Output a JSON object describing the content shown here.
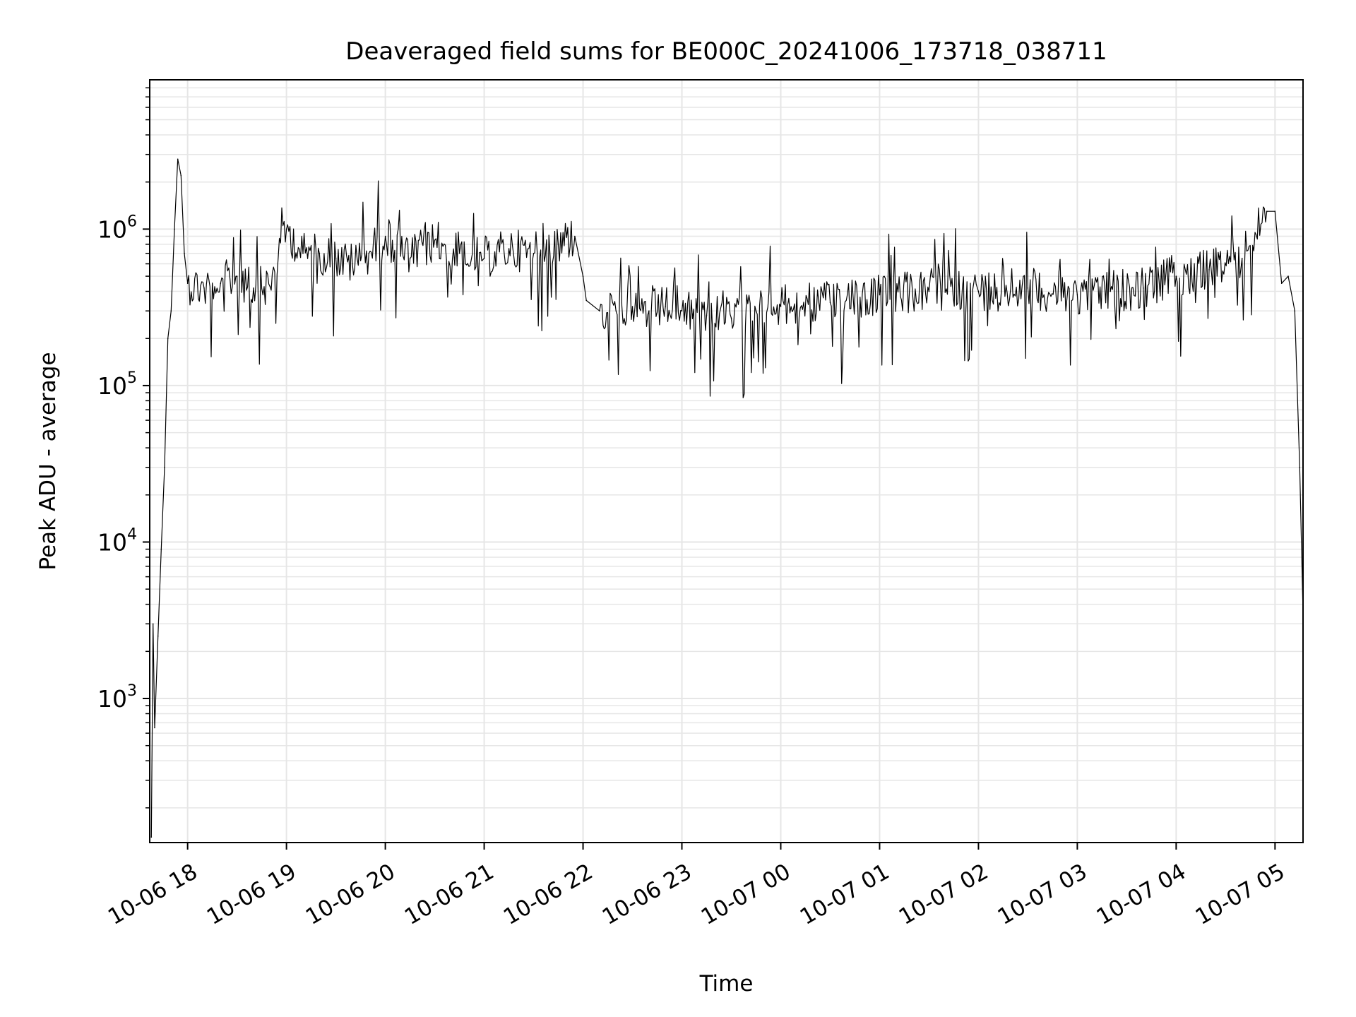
{
  "chart_data": {
    "type": "line",
    "title": "Deaveraged field sums for BE000C_20241006_173718_038711",
    "xlabel": "Time",
    "ylabel": "Peak ADU - average",
    "yscale": "log",
    "ylim": [
      120,
      9000000
    ],
    "xlim": [
      "2024-10-06 17:37",
      "2024-10-07 05:17"
    ],
    "grid": "both, major and minor",
    "line_color": "#000000",
    "grid_color": "#e6e6e6",
    "x_ticks": [
      {
        "t": "2024-10-06 18:00",
        "label": "10-06 18"
      },
      {
        "t": "2024-10-06 19:00",
        "label": "10-06 19"
      },
      {
        "t": "2024-10-06 20:00",
        "label": "10-06 20"
      },
      {
        "t": "2024-10-06 21:00",
        "label": "10-06 21"
      },
      {
        "t": "2024-10-06 22:00",
        "label": "10-06 22"
      },
      {
        "t": "2024-10-06 23:00",
        "label": "10-06 23"
      },
      {
        "t": "2024-10-07 00:00",
        "label": "10-07 00"
      },
      {
        "t": "2024-10-07 01:00",
        "label": "10-07 01"
      },
      {
        "t": "2024-10-07 02:00",
        "label": "10-07 02"
      },
      {
        "t": "2024-10-07 03:00",
        "label": "10-07 03"
      },
      {
        "t": "2024-10-07 04:00",
        "label": "10-07 04"
      },
      {
        "t": "2024-10-07 05:00",
        "label": "10-07 05"
      }
    ],
    "y_ticks": [
      {
        "value": 1000,
        "base": "10",
        "exp": "3"
      },
      {
        "value": 10000,
        "base": "10",
        "exp": "4"
      },
      {
        "value": 100000,
        "base": "10",
        "exp": "5"
      },
      {
        "value": 1000000,
        "base": "10",
        "exp": "6"
      }
    ],
    "series": [
      {
        "x": [
          "2024-10-06 17:38",
          "2024-10-06 17:39",
          "2024-10-06 17:40",
          "2024-10-06 17:42",
          "2024-10-06 17:44",
          "2024-10-06 17:46",
          "2024-10-06 17:48",
          "2024-10-06 17:50",
          "2024-10-06 17:52",
          "2024-10-06 17:54",
          "2024-10-06 17:56",
          "2024-10-06 17:58",
          "2024-10-06 18:00",
          "2024-10-06 18:10",
          "2024-10-06 18:20",
          "2024-10-06 18:30",
          "2024-10-06 18:40",
          "2024-10-06 18:50",
          "2024-10-06 19:00",
          "2024-10-06 19:10",
          "2024-10-06 19:20",
          "2024-10-06 19:30",
          "2024-10-06 19:40",
          "2024-10-06 19:50",
          "2024-10-06 20:00",
          "2024-10-06 20:15",
          "2024-10-06 20:30",
          "2024-10-06 20:45",
          "2024-10-06 21:00",
          "2024-10-06 21:15",
          "2024-10-06 21:30",
          "2024-10-06 21:45",
          "2024-10-06 21:55",
          "2024-10-06 22:00",
          "2024-10-06 22:02",
          "2024-10-06 22:10",
          "2024-10-06 22:20",
          "2024-10-06 22:30",
          "2024-10-06 22:40",
          "2024-10-06 22:50",
          "2024-10-06 23:00",
          "2024-10-06 23:15",
          "2024-10-06 23:30",
          "2024-10-06 23:45",
          "2024-10-07 00:00",
          "2024-10-07 00:30",
          "2024-10-07 01:00",
          "2024-10-07 01:30",
          "2024-10-07 02:00",
          "2024-10-07 02:30",
          "2024-10-07 03:00",
          "2024-10-07 03:20",
          "2024-10-07 03:40",
          "2024-10-07 04:00",
          "2024-10-07 04:20",
          "2024-10-07 04:40",
          "2024-10-07 04:55",
          "2024-10-07 05:00",
          "2024-10-07 05:04",
          "2024-10-07 05:08",
          "2024-10-07 05:12",
          "2024-10-07 05:15",
          "2024-10-07 05:17"
        ],
        "y": [
          130,
          3000,
          650,
          2500,
          9000,
          30000,
          200000,
          300000,
          1000000,
          2800000,
          2200000,
          700000,
          450000,
          420000,
          450000,
          500000,
          420000,
          430000,
          1000000,
          700000,
          700000,
          650000,
          600000,
          700000,
          900000,
          650000,
          850000,
          700000,
          650000,
          750000,
          700000,
          800000,
          900000,
          500000,
          350000,
          300000,
          300000,
          320000,
          300000,
          320000,
          300000,
          280000,
          270000,
          300000,
          320000,
          340000,
          380000,
          400000,
          400000,
          420000,
          380000,
          400000,
          420000,
          500000,
          550000,
          650000,
          1300000,
          1300000,
          450000,
          500000,
          300000,
          30000,
          3500
        ]
      }
    ]
  }
}
